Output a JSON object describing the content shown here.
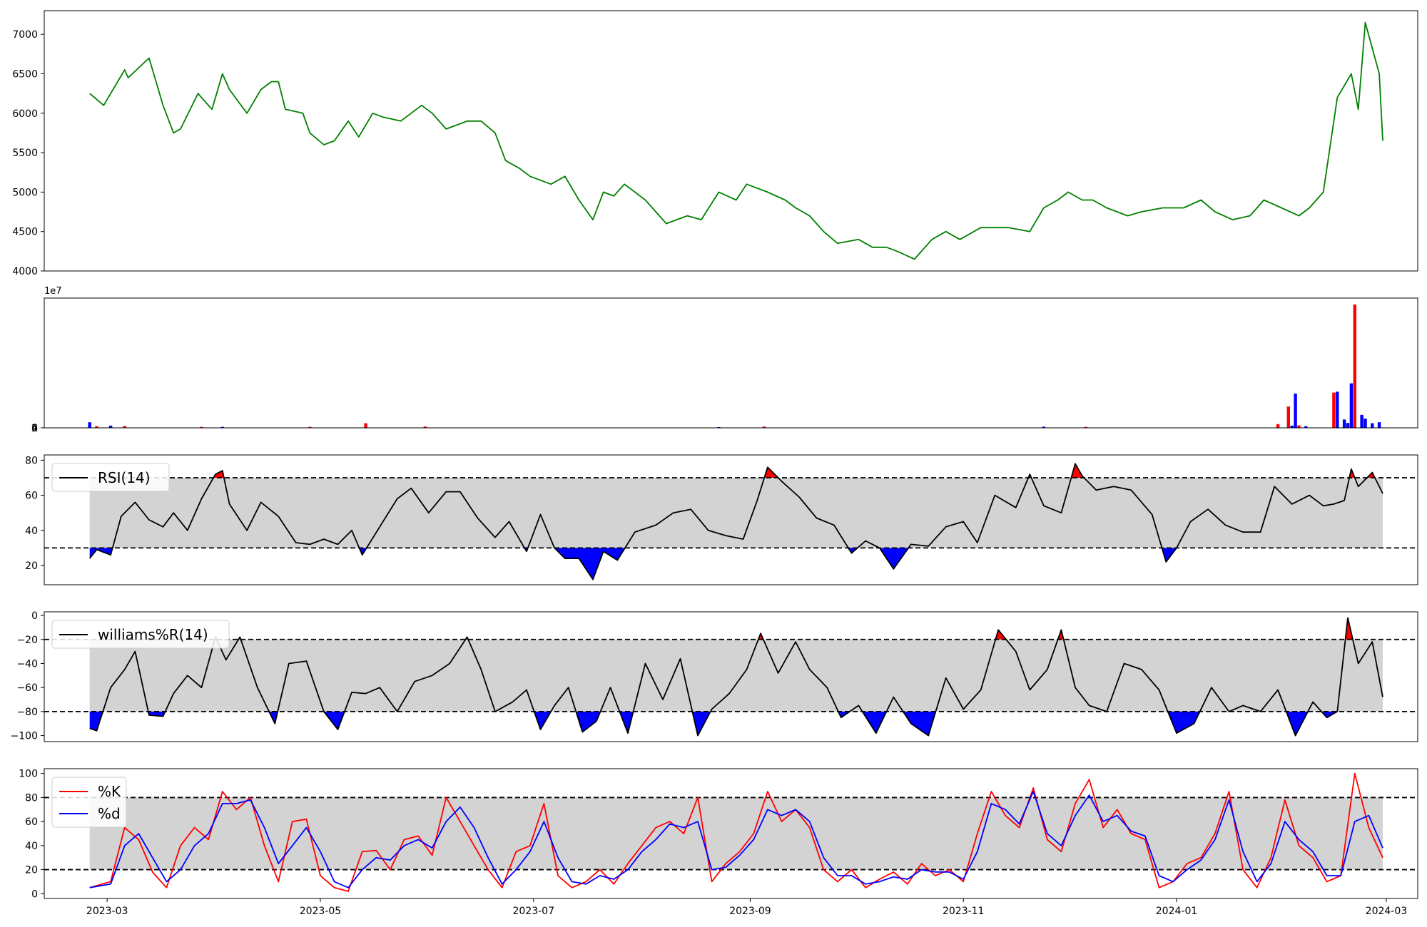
{
  "chart_data": [
    {
      "type": "line",
      "panel": "price",
      "ylim": [
        4000,
        7300
      ],
      "yticks": [
        "4000",
        "4500",
        "5000",
        "5500",
        "6000",
        "6500",
        "7000"
      ],
      "colors": {
        "line": "#008000"
      },
      "x": [
        "2023-02-24",
        "2023-02-28",
        "2023-03-06",
        "2023-03-07",
        "2023-03-13",
        "2023-03-17",
        "2023-03-20",
        "2023-03-22",
        "2023-03-27",
        "2023-03-31",
        "2023-04-03",
        "2023-04-05",
        "2023-04-10",
        "2023-04-14",
        "2023-04-17",
        "2023-04-19",
        "2023-04-21",
        "2023-04-26",
        "2023-04-28",
        "2023-05-02",
        "2023-05-05",
        "2023-05-09",
        "2023-05-12",
        "2023-05-16",
        "2023-05-19",
        "2023-05-24",
        "2023-05-30",
        "2023-06-02",
        "2023-06-06",
        "2023-06-12",
        "2023-06-16",
        "2023-06-20",
        "2023-06-23",
        "2023-06-27",
        "2023-06-30",
        "2023-07-06",
        "2023-07-10",
        "2023-07-14",
        "2023-07-18",
        "2023-07-21",
        "2023-07-24",
        "2023-07-27",
        "2023-08-02",
        "2023-08-08",
        "2023-08-14",
        "2023-08-18",
        "2023-08-23",
        "2023-08-28",
        "2023-08-31",
        "2023-09-06",
        "2023-09-11",
        "2023-09-14",
        "2023-09-18",
        "2023-09-22",
        "2023-09-26",
        "2023-10-02",
        "2023-10-06",
        "2023-10-10",
        "2023-10-13",
        "2023-10-18",
        "2023-10-23",
        "2023-10-27",
        "2023-10-31",
        "2023-11-06",
        "2023-11-10",
        "2023-11-14",
        "2023-11-20",
        "2023-11-24",
        "2023-11-28",
        "2023-12-01",
        "2023-12-05",
        "2023-12-08",
        "2023-12-12",
        "2023-12-18",
        "2023-12-22",
        "2023-12-28",
        "2024-01-03",
        "2024-01-08",
        "2024-01-12",
        "2024-01-17",
        "2024-01-22",
        "2024-01-26",
        "2024-01-31",
        "2024-02-05",
        "2024-02-08",
        "2024-02-12",
        "2024-02-16",
        "2024-02-20",
        "2024-02-22",
        "2024-02-24",
        "2024-02-28",
        "2024-02-29"
      ],
      "values": [
        6250,
        6100,
        6550,
        6450,
        6700,
        6100,
        5750,
        5800,
        6250,
        6050,
        6500,
        6300,
        6000,
        6300,
        6400,
        6400,
        6050,
        6000,
        5750,
        5600,
        5650,
        5900,
        5700,
        6000,
        5950,
        5900,
        6100,
        6000,
        5800,
        5900,
        5900,
        5750,
        5400,
        5300,
        5200,
        5100,
        5200,
        4900,
        4650,
        5000,
        4950,
        5100,
        4900,
        4600,
        4700,
        4650,
        5000,
        4900,
        5100,
        5000,
        4900,
        4800,
        4700,
        4500,
        4350,
        4400,
        4300,
        4300,
        4250,
        4150,
        4400,
        4500,
        4400,
        4550,
        4550,
        4550,
        4500,
        4800,
        4900,
        5000,
        4900,
        4900,
        4800,
        4700,
        4750,
        4800,
        4800,
        4900,
        4750,
        4650,
        4700,
        4900,
        4800,
        4700,
        4800,
        5000,
        6200,
        6500,
        6050,
        7150,
        6500,
        5650
      ]
    },
    {
      "type": "bar",
      "panel": "volume",
      "ylim": [
        0,
        70000000
      ],
      "yticks": [
        "0",
        "2",
        "4",
        "6"
      ],
      "exponent_label": "1e7",
      "colors": {
        "up": "#ff0000",
        "down": "#0000ff"
      },
      "bars": [
        {
          "x": "2023-02-24",
          "value": 3000000,
          "color": "#0000ff"
        },
        {
          "x": "2023-02-26",
          "value": 900000,
          "color": "#ff0000"
        },
        {
          "x": "2023-03-02",
          "value": 1200000,
          "color": "#0000ff"
        },
        {
          "x": "2023-03-06",
          "value": 1000000,
          "color": "#ff0000"
        },
        {
          "x": "2023-03-28",
          "value": 500000,
          "color": "#ff0000"
        },
        {
          "x": "2023-04-03",
          "value": 500000,
          "color": "#0000ff"
        },
        {
          "x": "2023-04-28",
          "value": 500000,
          "color": "#ff0000"
        },
        {
          "x": "2023-05-14",
          "value": 2500000,
          "color": "#ff0000"
        },
        {
          "x": "2023-05-31",
          "value": 700000,
          "color": "#ff0000"
        },
        {
          "x": "2023-08-23",
          "value": 400000,
          "color": "#0000ff"
        },
        {
          "x": "2023-09-05",
          "value": 700000,
          "color": "#ff0000"
        },
        {
          "x": "2023-11-24",
          "value": 600000,
          "color": "#0000ff"
        },
        {
          "x": "2023-12-06",
          "value": 500000,
          "color": "#ff0000"
        },
        {
          "x": "2024-01-30",
          "value": 2000000,
          "color": "#ff0000"
        },
        {
          "x": "2024-02-02",
          "value": 11500000,
          "color": "#ff0000"
        },
        {
          "x": "2024-02-03",
          "value": 1200000,
          "color": "#0000ff"
        },
        {
          "x": "2024-02-04",
          "value": 18500000,
          "color": "#0000ff"
        },
        {
          "x": "2024-02-05",
          "value": 1300000,
          "color": "#ff0000"
        },
        {
          "x": "2024-02-07",
          "value": 900000,
          "color": "#0000ff"
        },
        {
          "x": "2024-02-15",
          "value": 19000000,
          "color": "#ff0000"
        },
        {
          "x": "2024-02-16",
          "value": 19500000,
          "color": "#0000ff"
        },
        {
          "x": "2024-02-18",
          "value": 4500000,
          "color": "#0000ff"
        },
        {
          "x": "2024-02-19",
          "value": 2600000,
          "color": "#0000ff"
        },
        {
          "x": "2024-02-20",
          "value": 24000000,
          "color": "#0000ff"
        },
        {
          "x": "2024-02-21",
          "value": 66500000,
          "color": "#ff0000"
        },
        {
          "x": "2024-02-23",
          "value": 7000000,
          "color": "#0000ff"
        },
        {
          "x": "2024-02-24",
          "value": 5000000,
          "color": "#0000ff"
        },
        {
          "x": "2024-02-26",
          "value": 2500000,
          "color": "#0000ff"
        },
        {
          "x": "2024-02-28",
          "value": 3000000,
          "color": "#0000ff"
        }
      ]
    },
    {
      "type": "line",
      "panel": "rsi",
      "legend": "RSI(14)",
      "ylim": [
        9,
        83
      ],
      "yticks": [
        "20",
        "40",
        "60",
        "80"
      ],
      "bands": [
        30,
        70
      ],
      "colors": {
        "line": "#000000",
        "band": "#d3d3d3",
        "over": "#ff0000",
        "under": "#0000ff"
      },
      "x": [
        "2023-02-24",
        "2023-02-26",
        "2023-03-02",
        "2023-03-05",
        "2023-03-09",
        "2023-03-13",
        "2023-03-17",
        "2023-03-20",
        "2023-03-24",
        "2023-03-28",
        "2023-04-01",
        "2023-04-03",
        "2023-04-05",
        "2023-04-10",
        "2023-04-14",
        "2023-04-19",
        "2023-04-24",
        "2023-04-28",
        "2023-05-02",
        "2023-05-06",
        "2023-05-10",
        "2023-05-13",
        "2023-05-18",
        "2023-05-23",
        "2023-05-27",
        "2023-06-01",
        "2023-06-06",
        "2023-06-10",
        "2023-06-15",
        "2023-06-20",
        "2023-06-24",
        "2023-06-29",
        "2023-07-03",
        "2023-07-07",
        "2023-07-10",
        "2023-07-14",
        "2023-07-18",
        "2023-07-21",
        "2023-07-25",
        "2023-07-30",
        "2023-08-05",
        "2023-08-10",
        "2023-08-15",
        "2023-08-20",
        "2023-08-25",
        "2023-08-30",
        "2023-09-03",
        "2023-09-06",
        "2023-09-10",
        "2023-09-15",
        "2023-09-20",
        "2023-09-25",
        "2023-09-30",
        "2023-10-04",
        "2023-10-08",
        "2023-10-12",
        "2023-10-17",
        "2023-10-22",
        "2023-10-27",
        "2023-11-01",
        "2023-11-05",
        "2023-11-10",
        "2023-11-16",
        "2023-11-20",
        "2023-11-24",
        "2023-11-29",
        "2023-12-03",
        "2023-12-05",
        "2023-12-09",
        "2023-12-14",
        "2023-12-19",
        "2023-12-25",
        "2023-12-29",
        "2024-01-01",
        "2024-01-05",
        "2024-01-10",
        "2024-01-15",
        "2024-01-20",
        "2024-01-25",
        "2024-01-29",
        "2024-02-03",
        "2024-02-08",
        "2024-02-12",
        "2024-02-15",
        "2024-02-18",
        "2024-02-20",
        "2024-02-22",
        "2024-02-26",
        "2024-02-29"
      ],
      "values": [
        24,
        29,
        26,
        48,
        56,
        46,
        42,
        50,
        40,
        58,
        72,
        74,
        55,
        40,
        56,
        48,
        33,
        32,
        35,
        32,
        40,
        26,
        42,
        58,
        64,
        50,
        62,
        62,
        47,
        36,
        45,
        28,
        49,
        30,
        24,
        24,
        12,
        28,
        23,
        39,
        43,
        50,
        52,
        40,
        37,
        35,
        57,
        76,
        68,
        59,
        47,
        43,
        27,
        34,
        30,
        18,
        32,
        31,
        42,
        45,
        33,
        60,
        53,
        72,
        54,
        50,
        78,
        71,
        63,
        65,
        63,
        49,
        22,
        30,
        45,
        52,
        43,
        39,
        39,
        65,
        55,
        60,
        54,
        55,
        57,
        75,
        65,
        73,
        61
      ]
    },
    {
      "type": "line",
      "panel": "williams",
      "legend": "williams%R(14)",
      "ylim": [
        -105,
        3
      ],
      "yticks": [
        "0",
        "−20",
        "−40",
        "−60",
        "−80",
        "−100"
      ],
      "bands": [
        -80,
        -20
      ],
      "colors": {
        "line": "#000000",
        "band": "#d3d3d3",
        "over": "#ff0000",
        "under": "#0000ff"
      },
      "x": [
        "2023-02-24",
        "2023-02-26",
        "2023-03-02",
        "2023-03-06",
        "2023-03-09",
        "2023-03-13",
        "2023-03-17",
        "2023-03-20",
        "2023-03-24",
        "2023-03-28",
        "2023-04-01",
        "2023-04-04",
        "2023-04-08",
        "2023-04-13",
        "2023-04-18",
        "2023-04-22",
        "2023-04-27",
        "2023-05-02",
        "2023-05-06",
        "2023-05-10",
        "2023-05-14",
        "2023-05-18",
        "2023-05-23",
        "2023-05-28",
        "2023-06-02",
        "2023-06-07",
        "2023-06-12",
        "2023-06-16",
        "2023-06-20",
        "2023-06-25",
        "2023-06-29",
        "2023-07-03",
        "2023-07-07",
        "2023-07-11",
        "2023-07-15",
        "2023-07-19",
        "2023-07-23",
        "2023-07-28",
        "2023-08-02",
        "2023-08-07",
        "2023-08-12",
        "2023-08-17",
        "2023-08-21",
        "2023-08-26",
        "2023-08-31",
        "2023-09-04",
        "2023-09-09",
        "2023-09-14",
        "2023-09-18",
        "2023-09-23",
        "2023-09-27",
        "2023-10-02",
        "2023-10-07",
        "2023-10-12",
        "2023-10-17",
        "2023-10-22",
        "2023-10-27",
        "2023-11-01",
        "2023-11-06",
        "2023-11-11",
        "2023-11-16",
        "2023-11-20",
        "2023-11-25",
        "2023-11-29",
        "2023-12-03",
        "2023-12-07",
        "2023-12-12",
        "2023-12-17",
        "2023-12-22",
        "2023-12-27",
        "2024-01-01",
        "2024-01-06",
        "2024-01-11",
        "2024-01-16",
        "2024-01-20",
        "2024-01-25",
        "2024-01-30",
        "2024-02-04",
        "2024-02-09",
        "2024-02-13",
        "2024-02-16",
        "2024-02-19",
        "2024-02-22",
        "2024-02-26",
        "2024-02-29"
      ],
      "values": [
        -94,
        -96,
        -60,
        -45,
        -30,
        -83,
        -84,
        -65,
        -50,
        -60,
        -18,
        -37,
        -18,
        -60,
        -90,
        -40,
        -38,
        -80,
        -95,
        -64,
        -65,
        -60,
        -80,
        -55,
        -50,
        -40,
        -18,
        -45,
        -80,
        -72,
        -62,
        -95,
        -75,
        -60,
        -97,
        -88,
        -60,
        -98,
        -40,
        -70,
        -36,
        -100,
        -78,
        -65,
        -45,
        -15,
        -48,
        -22,
        -45,
        -60,
        -85,
        -75,
        -98,
        -68,
        -90,
        -100,
        -52,
        -78,
        -62,
        -12,
        -30,
        -62,
        -45,
        -12,
        -60,
        -75,
        -80,
        -40,
        -45,
        -62,
        -98,
        -90,
        -60,
        -80,
        -75,
        -80,
        -62,
        -100,
        -72,
        -85,
        -80,
        -2,
        -40,
        -22,
        -68
      ]
    },
    {
      "type": "line",
      "panel": "stochastic",
      "ylim": [
        -4,
        104
      ],
      "yticks": [
        "0",
        "20",
        "40",
        "60",
        "80",
        "100"
      ],
      "bands": [
        20,
        80
      ],
      "colors": {
        "band": "#d3d3d3"
      },
      "x": [
        "2023-02-24",
        "2023-03-02",
        "2023-03-06",
        "2023-03-10",
        "2023-03-14",
        "2023-03-18",
        "2023-03-22",
        "2023-03-26",
        "2023-03-30",
        "2023-04-03",
        "2023-04-07",
        "2023-04-11",
        "2023-04-15",
        "2023-04-19",
        "2023-04-23",
        "2023-04-27",
        "2023-05-01",
        "2023-05-05",
        "2023-05-09",
        "2023-05-13",
        "2023-05-17",
        "2023-05-21",
        "2023-05-25",
        "2023-05-29",
        "2023-06-02",
        "2023-06-06",
        "2023-06-10",
        "2023-06-14",
        "2023-06-18",
        "2023-06-22",
        "2023-06-26",
        "2023-06-30",
        "2023-07-04",
        "2023-07-08",
        "2023-07-12",
        "2023-07-16",
        "2023-07-20",
        "2023-07-24",
        "2023-07-28",
        "2023-08-01",
        "2023-08-05",
        "2023-08-09",
        "2023-08-13",
        "2023-08-17",
        "2023-08-21",
        "2023-08-25",
        "2023-08-29",
        "2023-09-02",
        "2023-09-06",
        "2023-09-10",
        "2023-09-14",
        "2023-09-18",
        "2023-09-22",
        "2023-09-26",
        "2023-09-30",
        "2023-10-04",
        "2023-10-08",
        "2023-10-12",
        "2023-10-16",
        "2023-10-20",
        "2023-10-24",
        "2023-10-28",
        "2023-11-01",
        "2023-11-05",
        "2023-11-09",
        "2023-11-13",
        "2023-11-17",
        "2023-11-21",
        "2023-11-25",
        "2023-11-29",
        "2023-12-03",
        "2023-12-07",
        "2023-12-11",
        "2023-12-15",
        "2023-12-19",
        "2023-12-23",
        "2023-12-27",
        "2023-12-31",
        "2024-01-04",
        "2024-01-08",
        "2024-01-12",
        "2024-01-16",
        "2024-01-20",
        "2024-01-24",
        "2024-01-28",
        "2024-02-01",
        "2024-02-05",
        "2024-02-09",
        "2024-02-13",
        "2024-02-17",
        "2024-02-21",
        "2024-02-25",
        "2024-02-29"
      ],
      "series": [
        {
          "name": "%K",
          "color": "#ff0000",
          "values": [
            5,
            10,
            55,
            45,
            18,
            5,
            40,
            55,
            45,
            85,
            70,
            80,
            40,
            10,
            60,
            62,
            15,
            5,
            2,
            35,
            36,
            20,
            45,
            48,
            32,
            80,
            60,
            40,
            20,
            5,
            35,
            40,
            75,
            15,
            5,
            10,
            20,
            8,
            25,
            40,
            55,
            60,
            50,
            80,
            10,
            25,
            35,
            50,
            85,
            60,
            70,
            55,
            20,
            10,
            20,
            5,
            12,
            18,
            8,
            25,
            15,
            20,
            10,
            50,
            85,
            65,
            55,
            88,
            45,
            35,
            75,
            95,
            55,
            70,
            50,
            45,
            5,
            10,
            25,
            30,
            50,
            85,
            20,
            5,
            30,
            78,
            40,
            30,
            10,
            15,
            100,
            55,
            30
          ]
        },
        {
          "name": "%d",
          "color": "#0000ff",
          "values": [
            5,
            8,
            40,
            50,
            30,
            10,
            20,
            40,
            50,
            75,
            75,
            78,
            55,
            25,
            40,
            55,
            35,
            10,
            5,
            20,
            30,
            28,
            40,
            45,
            38,
            60,
            72,
            55,
            30,
            8,
            20,
            35,
            60,
            30,
            10,
            8,
            15,
            12,
            20,
            35,
            45,
            58,
            55,
            60,
            20,
            22,
            32,
            45,
            70,
            65,
            70,
            60,
            30,
            15,
            15,
            8,
            10,
            14,
            12,
            20,
            18,
            18,
            12,
            35,
            75,
            70,
            58,
            85,
            50,
            40,
            65,
            82,
            60,
            65,
            52,
            48,
            15,
            10,
            20,
            28,
            45,
            78,
            35,
            10,
            25,
            60,
            45,
            35,
            15,
            15,
            60,
            65,
            38
          ]
        }
      ]
    }
  ],
  "x_axis": {
    "ticks": [
      "2023-03",
      "2023-05",
      "2023-07",
      "2023-09",
      "2023-11",
      "2024-01",
      "2024-03"
    ]
  }
}
